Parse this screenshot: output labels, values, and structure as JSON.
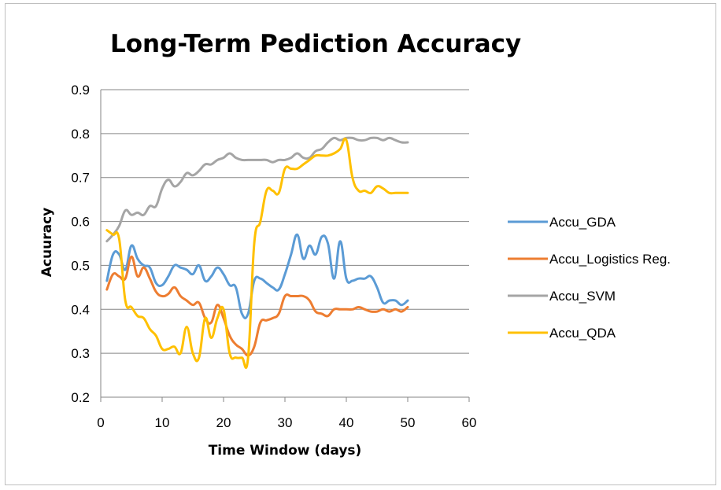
{
  "chart_data": {
    "type": "line",
    "title": "Long-Term Pediction Accuracy",
    "xlabel": "Time Window (days)",
    "ylabel": "Acuuracy",
    "xlim": [
      0,
      60
    ],
    "ylim": [
      0.2,
      0.9
    ],
    "x_ticks": [
      "0",
      "10",
      "20",
      "30",
      "40",
      "50",
      "60"
    ],
    "y_ticks": [
      "0.2",
      "0.3",
      "0.4",
      "0.5",
      "0.6",
      "0.7",
      "0.8",
      "0.9"
    ],
    "grid": "horizontal",
    "legend_position": "right",
    "x": [
      1,
      2,
      3,
      4,
      5,
      6,
      7,
      8,
      9,
      10,
      11,
      12,
      13,
      14,
      15,
      16,
      17,
      18,
      19,
      20,
      21,
      22,
      23,
      24,
      25,
      26,
      27,
      28,
      29,
      30,
      31,
      32,
      33,
      34,
      35,
      36,
      37,
      38,
      39,
      40,
      41,
      42,
      43,
      44,
      45,
      46,
      47,
      48,
      49,
      50
    ],
    "series": [
      {
        "name": "Accu_GDA",
        "color": "#5b9bd5",
        "values": [
          0.465,
          0.525,
          0.525,
          0.49,
          0.545,
          0.515,
          0.5,
          0.495,
          0.46,
          0.455,
          0.475,
          0.5,
          0.495,
          0.49,
          0.48,
          0.5,
          0.465,
          0.475,
          0.495,
          0.48,
          0.455,
          0.45,
          0.39,
          0.39,
          0.465,
          0.47,
          0.46,
          0.45,
          0.445,
          0.48,
          0.525,
          0.57,
          0.515,
          0.545,
          0.525,
          0.565,
          0.55,
          0.47,
          0.555,
          0.47,
          0.465,
          0.47,
          0.47,
          0.475,
          0.45,
          0.415,
          0.42,
          0.42,
          0.41,
          0.42
        ]
      },
      {
        "name": "Accu_Logistics Reg.",
        "color": "#ed7d31",
        "values": [
          0.445,
          0.48,
          0.475,
          0.47,
          0.52,
          0.475,
          0.495,
          0.47,
          0.44,
          0.43,
          0.435,
          0.45,
          0.43,
          0.42,
          0.41,
          0.415,
          0.38,
          0.37,
          0.41,
          0.38,
          0.34,
          0.32,
          0.31,
          0.295,
          0.315,
          0.37,
          0.375,
          0.38,
          0.39,
          0.43,
          0.43,
          0.43,
          0.43,
          0.42,
          0.395,
          0.39,
          0.385,
          0.4,
          0.4,
          0.4,
          0.4,
          0.405,
          0.4,
          0.395,
          0.395,
          0.4,
          0.395,
          0.4,
          0.395,
          0.405
        ]
      },
      {
        "name": "Accu_SVM",
        "color": "#a5a5a5",
        "values": [
          0.555,
          0.57,
          0.59,
          0.625,
          0.615,
          0.62,
          0.615,
          0.635,
          0.635,
          0.675,
          0.695,
          0.68,
          0.69,
          0.71,
          0.705,
          0.715,
          0.73,
          0.73,
          0.74,
          0.745,
          0.755,
          0.745,
          0.74,
          0.74,
          0.74,
          0.74,
          0.74,
          0.735,
          0.74,
          0.74,
          0.745,
          0.755,
          0.745,
          0.745,
          0.76,
          0.765,
          0.78,
          0.79,
          0.785,
          0.79,
          0.79,
          0.785,
          0.785,
          0.79,
          0.79,
          0.785,
          0.79,
          0.785,
          0.78,
          0.78
        ]
      },
      {
        "name": "Accu_QDA",
        "color": "#ffc000",
        "values": [
          0.58,
          0.57,
          0.56,
          0.42,
          0.405,
          0.385,
          0.38,
          0.355,
          0.34,
          0.31,
          0.31,
          0.315,
          0.3,
          0.36,
          0.3,
          0.29,
          0.38,
          0.335,
          0.38,
          0.4,
          0.3,
          0.29,
          0.29,
          0.29,
          0.55,
          0.6,
          0.67,
          0.67,
          0.665,
          0.72,
          0.72,
          0.72,
          0.73,
          0.74,
          0.75,
          0.75,
          0.75,
          0.755,
          0.765,
          0.785,
          0.7,
          0.67,
          0.67,
          0.665,
          0.68,
          0.675,
          0.665,
          0.665,
          0.665,
          0.665
        ]
      }
    ]
  }
}
